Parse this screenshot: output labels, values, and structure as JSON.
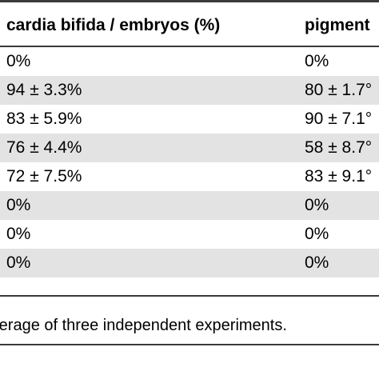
{
  "table": {
    "headers": [
      "cardia bifida / embryos (%)",
      "pigment"
    ],
    "rows": [
      [
        "0%",
        "0%"
      ],
      [
        "94 ± 3.3%",
        "80 ± 1.7°"
      ],
      [
        "83 ± 5.9%",
        "90 ± 7.1°"
      ],
      [
        "76 ± 4.4%",
        "58 ± 8.7°"
      ],
      [
        "72 ± 7.5%",
        "83 ± 9.1°"
      ],
      [
        "0%",
        "0%"
      ],
      [
        "0%",
        "0%"
      ],
      [
        "0%",
        "0%"
      ]
    ],
    "row_shading_color": "#e3e3e3",
    "rule_color": "#3a3a3a"
  },
  "footnote": "rerage of three independent experiments."
}
